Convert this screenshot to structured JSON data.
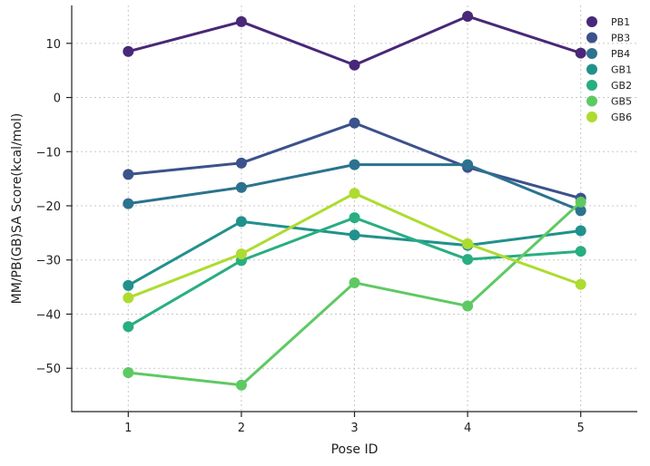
{
  "chart_data": {
    "type": "line",
    "title": "",
    "xlabel": "Pose ID",
    "ylabel": "MM/PB(GB)SA Score(kcal/mol)",
    "x": [
      1,
      2,
      3,
      4,
      5
    ],
    "xlim": [
      0.5,
      5.5
    ],
    "ylim": [
      -58,
      17
    ],
    "xticks": [
      1,
      2,
      3,
      4,
      5
    ],
    "xtick_labels": [
      "1",
      "2",
      "3",
      "4",
      "5"
    ],
    "yticks": [
      10,
      0,
      -10,
      -20,
      -30,
      -40,
      -50
    ],
    "ytick_labels": [
      "10",
      "0",
      "−10",
      "−20",
      "−30",
      "−40",
      "−50"
    ],
    "grid": true,
    "legend_position": "top-right",
    "series": [
      {
        "name": "PB1",
        "color": "#482878",
        "values": [
          8.5,
          14.0,
          6.0,
          15.0,
          8.2
        ]
      },
      {
        "name": "PB3",
        "color": "#3b528b",
        "values": [
          -14.2,
          -12.1,
          -4.7,
          -12.9,
          -18.6
        ]
      },
      {
        "name": "PB4",
        "color": "#2c728e",
        "values": [
          -19.6,
          -16.6,
          -12.4,
          -12.4,
          -20.9
        ]
      },
      {
        "name": "GB1",
        "color": "#21918c",
        "values": [
          -34.7,
          -22.9,
          -25.4,
          -27.3,
          -24.6
        ]
      },
      {
        "name": "GB2",
        "color": "#28ae80",
        "values": [
          -42.3,
          -30.1,
          -22.2,
          -29.9,
          -28.4
        ]
      },
      {
        "name": "GB5",
        "color": "#5ec962",
        "values": [
          -50.8,
          -53.1,
          -34.2,
          -38.5,
          -19.3
        ]
      },
      {
        "name": "GB6",
        "color": "#addc30",
        "values": [
          -37.0,
          -28.9,
          -17.7,
          -27.0,
          -34.5
        ]
      }
    ]
  }
}
